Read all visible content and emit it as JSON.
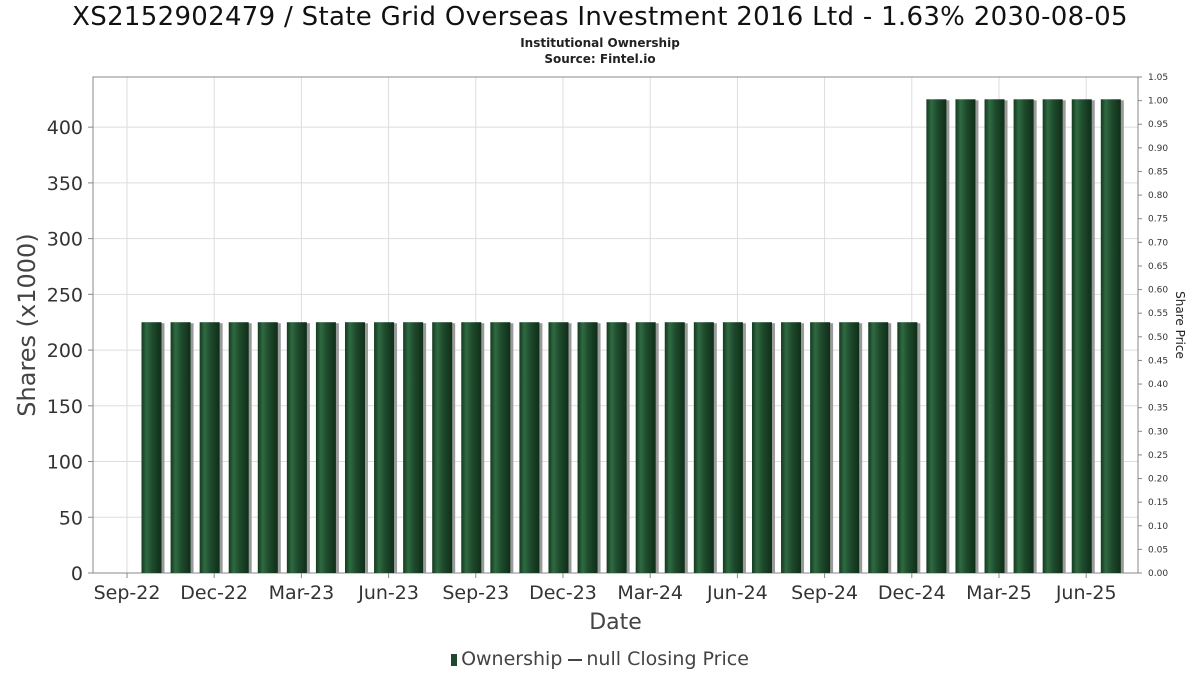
{
  "title": "XS2152902479 / State Grid Overseas Investment 2016 Ltd - 1.63% 2030-08-05",
  "subtitle": "Institutional Ownership",
  "source": "Source: Fintel.io",
  "legend": {
    "ownership_label": "Ownership",
    "price_label": "null Closing Price"
  },
  "colors": {
    "bar": "#1e4a2c",
    "bar_shadow": "#9a9a9a",
    "grid": "#dddddd",
    "axis": "#888888"
  },
  "chart_data": {
    "type": "bar",
    "title": "XS2152902479 / State Grid Overseas Investment 2016 Ltd - 1.63% 2030-08-05",
    "xlabel": "Date",
    "ylabel": "Shares (x1000)",
    "y2label": "Share Price",
    "ylim": [
      0,
      445
    ],
    "y2lim": [
      0,
      1.05
    ],
    "yticks": [
      0,
      50,
      100,
      150,
      200,
      250,
      300,
      350,
      400
    ],
    "y2ticks": [
      "0.00",
      "0.05",
      "0.10",
      "0.15",
      "0.20",
      "0.25",
      "0.30",
      "0.35",
      "0.40",
      "0.45",
      "0.50",
      "0.55",
      "0.60",
      "0.65",
      "0.70",
      "0.75",
      "0.80",
      "0.85",
      "0.90",
      "0.95",
      "1.00",
      "1.05"
    ],
    "xticks": [
      "Sep-22",
      "Dec-22",
      "Mar-23",
      "Jun-23",
      "Sep-23",
      "Dec-23",
      "Mar-24",
      "Jun-24",
      "Sep-24",
      "Dec-24",
      "Mar-25",
      "Jun-25"
    ],
    "grid": true,
    "legend_position": "bottom",
    "series": [
      {
        "name": "Ownership",
        "values": [
          225,
          225,
          225,
          225,
          225,
          225,
          225,
          225,
          225,
          225,
          225,
          225,
          225,
          225,
          225,
          225,
          225,
          225,
          225,
          225,
          225,
          225,
          225,
          225,
          225,
          225,
          225,
          425,
          425,
          425,
          425,
          425,
          425,
          425
        ]
      }
    ]
  }
}
